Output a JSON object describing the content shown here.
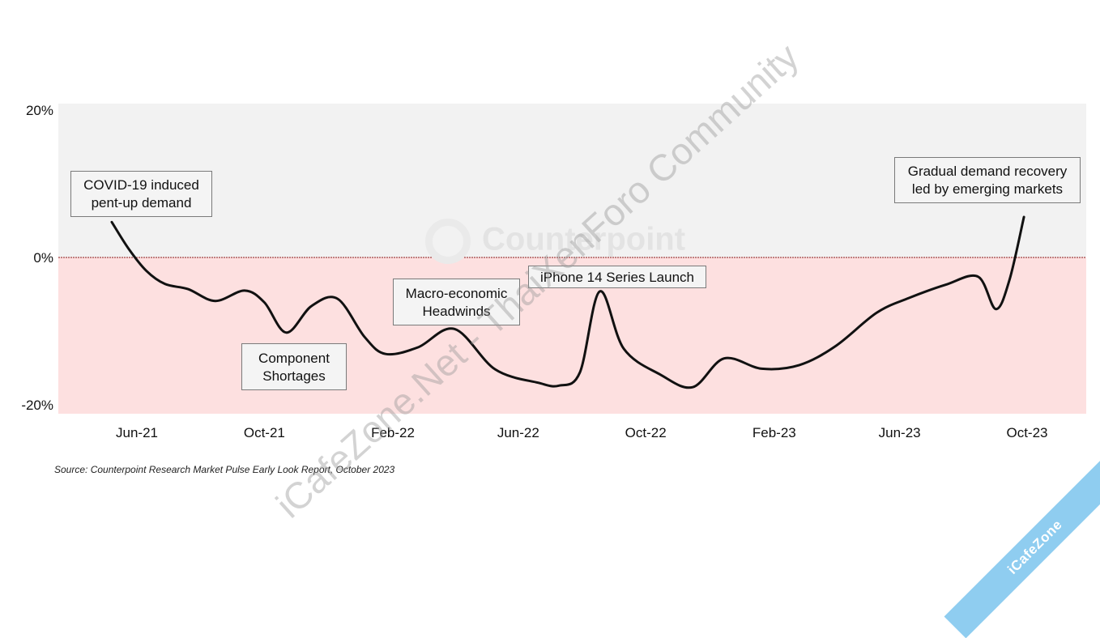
{
  "chart_data": {
    "type": "line",
    "xlabel": "",
    "ylabel": "",
    "ylim": [
      -0.2,
      0.2
    ],
    "yticks": [
      {
        "value": 0.2,
        "label": "20%"
      },
      {
        "value": 0.0,
        "label": "0%"
      },
      {
        "value": -0.2,
        "label": "-20%"
      }
    ],
    "x_range": [
      "2021-04-01",
      "2023-11-15"
    ],
    "xticks": [
      {
        "date": "2021-06-01",
        "label": "Jun-21"
      },
      {
        "date": "2021-10-01",
        "label": "Oct-21"
      },
      {
        "date": "2022-02-01",
        "label": "Feb-22"
      },
      {
        "date": "2022-06-01",
        "label": "Jun-22"
      },
      {
        "date": "2022-10-01",
        "label": "Oct-22"
      },
      {
        "date": "2023-02-01",
        "label": "Feb-23"
      },
      {
        "date": "2023-06-01",
        "label": "Jun-23"
      },
      {
        "date": "2023-10-01",
        "label": "Oct-23"
      }
    ],
    "background": {
      "positive_color": "#f2f2f2",
      "negative_color": "#fde0e0",
      "zero_line_color": "#8b1a1a"
    },
    "series": [
      {
        "color": "#111111",
        "points": [
          {
            "x": "2021-05-08",
            "y": 0.048
          },
          {
            "x": "2021-05-24",
            "y": 0.012
          },
          {
            "x": "2021-06-10",
            "y": -0.018
          },
          {
            "x": "2021-06-28",
            "y": -0.036
          },
          {
            "x": "2021-07-20",
            "y": -0.043
          },
          {
            "x": "2021-08-15",
            "y": -0.059
          },
          {
            "x": "2021-09-12",
            "y": -0.045
          },
          {
            "x": "2021-10-01",
            "y": -0.061
          },
          {
            "x": "2021-10-22",
            "y": -0.102
          },
          {
            "x": "2021-11-15",
            "y": -0.066
          },
          {
            "x": "2021-12-10",
            "y": -0.056
          },
          {
            "x": "2022-01-05",
            "y": -0.108
          },
          {
            "x": "2022-01-25",
            "y": -0.131
          },
          {
            "x": "2022-02-25",
            "y": -0.122
          },
          {
            "x": "2022-04-01",
            "y": -0.097
          },
          {
            "x": "2022-05-10",
            "y": -0.152
          },
          {
            "x": "2022-06-20",
            "y": -0.17
          },
          {
            "x": "2022-07-10",
            "y": -0.174
          },
          {
            "x": "2022-07-30",
            "y": -0.156
          },
          {
            "x": "2022-08-18",
            "y": -0.046
          },
          {
            "x": "2022-09-10",
            "y": -0.124
          },
          {
            "x": "2022-10-15",
            "y": -0.159
          },
          {
            "x": "2022-11-15",
            "y": -0.176
          },
          {
            "x": "2022-12-15",
            "y": -0.137
          },
          {
            "x": "2023-01-20",
            "y": -0.151
          },
          {
            "x": "2023-02-25",
            "y": -0.146
          },
          {
            "x": "2023-04-01",
            "y": -0.12
          },
          {
            "x": "2023-05-10",
            "y": -0.075
          },
          {
            "x": "2023-06-10",
            "y": -0.055
          },
          {
            "x": "2023-07-15",
            "y": -0.037
          },
          {
            "x": "2023-08-15",
            "y": -0.026
          },
          {
            "x": "2023-09-01",
            "y": -0.07
          },
          {
            "x": "2023-09-14",
            "y": -0.031
          },
          {
            "x": "2023-09-28",
            "y": 0.055
          }
        ]
      }
    ],
    "annotations": [
      {
        "lines": [
          "COVID-19 induced",
          "pent-up demand"
        ]
      },
      {
        "lines": [
          "Component",
          "Shortages"
        ]
      },
      {
        "lines": [
          "Macro-economic",
          "Headwinds"
        ]
      },
      {
        "lines": [
          "iPhone 14 Series Launch"
        ]
      },
      {
        "lines": [
          "Gradual demand recovery",
          "led by emerging markets"
        ]
      }
    ]
  },
  "source": "Source: Counterpoint Research Market Pulse Early Look Report, October 2023",
  "watermarks": {
    "logo_text": "Counterpoint",
    "diagonal_text": "iCafeZone.Net - ThaiXenForo Community",
    "corner_ribbon": "iCafeZone"
  }
}
